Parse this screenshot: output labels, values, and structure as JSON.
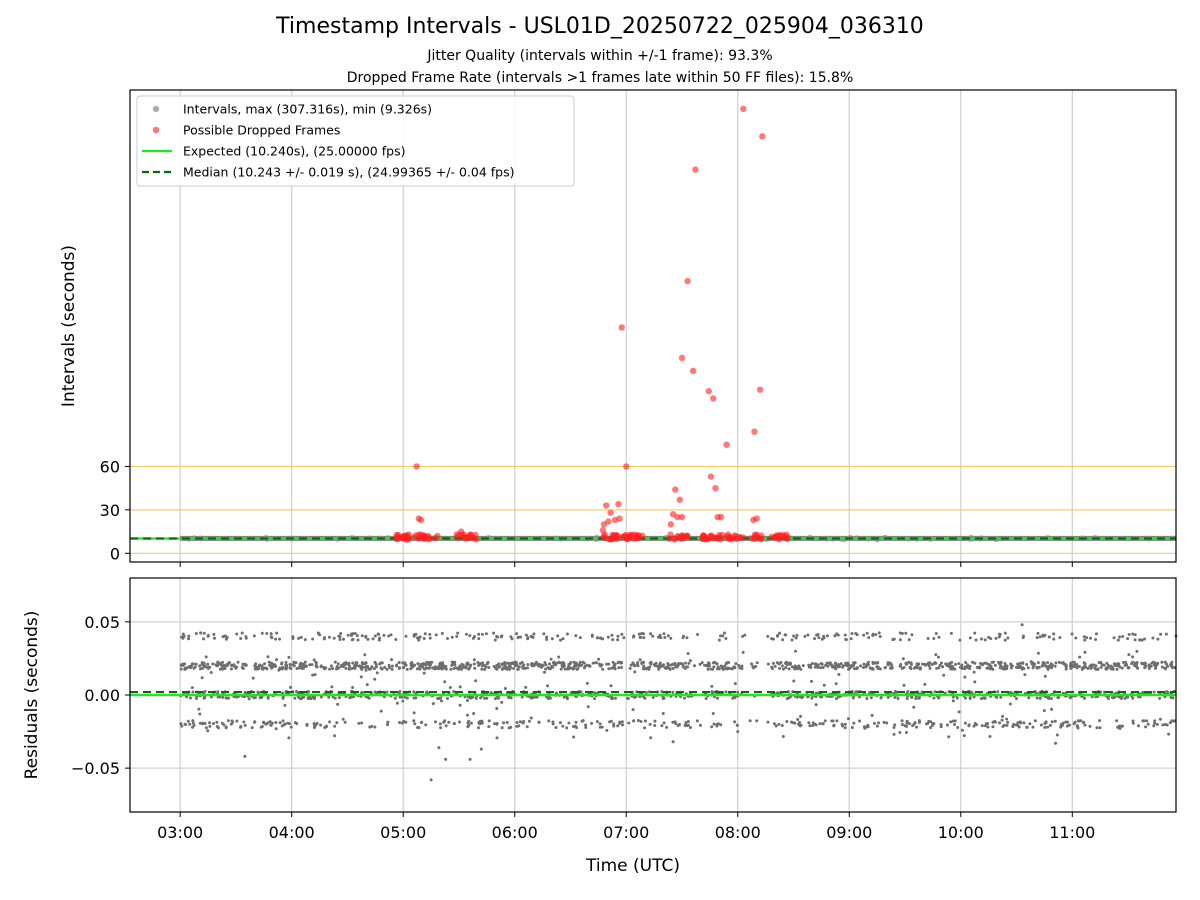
{
  "chart_data": [
    {
      "type": "scatter",
      "panel": "intervals",
      "title": "Timestamp Intervals - USL01D_20250722_025904_036310",
      "subtitles": [
        "Jitter Quality (intervals within +/-1 frame): 93.3%",
        "Dropped Frame Rate (intervals >1 frames late within 50 FF files): 15.8%"
      ],
      "ylabel": "Intervals (seconds)",
      "xlim_hours": [
        2.55,
        11.93
      ],
      "ylim": [
        -6,
        320
      ],
      "y_ticks": [
        0,
        30,
        60
      ],
      "y_tick_labels": [
        "0",
        "30",
        "60"
      ],
      "reference_lines": [
        0,
        30,
        60
      ],
      "reference_line_color": "#f5c842",
      "grid": true,
      "legend": {
        "placement": "top-left",
        "entries": [
          {
            "label": "Intervals, max (307.316s), min (9.326s)",
            "marker": "dot",
            "color": "#8c8c8c"
          },
          {
            "label": "Possible Dropped Frames",
            "marker": "dot",
            "color": "#ff3b3b"
          },
          {
            "label": "Expected (10.240s), (25.00000 fps)",
            "marker": "line",
            "color": "#1ee81e"
          },
          {
            "label": "Median (10.243 +/- 0.019 s), (24.99365 +/- 0.04 fps)",
            "marker": "dash",
            "color": "#0b6b0b"
          }
        ]
      },
      "series": [
        {
          "name": "Intervals, max (307.316s), min (9.326s)",
          "band_y": [
            9.6,
            11.0
          ],
          "x_range_hours": [
            3.0,
            11.93
          ]
        },
        {
          "name": "Possible Dropped Frames",
          "points": [
            [
              5.12,
              60
            ],
            [
              5.14,
              24
            ],
            [
              5.16,
              23
            ],
            [
              5.52,
              15
            ],
            [
              5.48,
              13
            ],
            [
              6.82,
              33
            ],
            [
              6.84,
              22
            ],
            [
              6.86,
              28
            ],
            [
              6.9,
              23
            ],
            [
              6.93,
              34
            ],
            [
              6.94,
              24
            ],
            [
              6.8,
              20
            ],
            [
              6.79,
              16
            ],
            [
              6.96,
              156
            ],
            [
              7.0,
              60
            ],
            [
              7.44,
              44
            ],
            [
              7.48,
              37
            ],
            [
              7.42,
              27
            ],
            [
              7.46,
              25
            ],
            [
              7.5,
              25
            ],
            [
              7.4,
              20
            ],
            [
              7.5,
              135
            ],
            [
              7.55,
              188
            ],
            [
              7.6,
              126
            ],
            [
              7.62,
              265
            ],
            [
              7.74,
              112
            ],
            [
              7.78,
              107
            ],
            [
              7.76,
              53
            ],
            [
              7.8,
              45
            ],
            [
              7.82,
              25
            ],
            [
              7.85,
              25
            ],
            [
              7.9,
              75
            ],
            [
              8.05,
              307
            ],
            [
              8.15,
              84
            ],
            [
              8.2,
              113
            ],
            [
              8.22,
              288
            ],
            [
              8.17,
              24
            ],
            [
              8.14,
              23
            ]
          ],
          "clusters": [
            [
              4.9,
              5.32
            ],
            [
              5.47,
              5.66
            ],
            [
              6.79,
              7.18
            ],
            [
              7.38,
              7.55
            ],
            [
              7.68,
              8.05
            ],
            [
              8.12,
              8.22
            ],
            [
              8.28,
              8.45
            ]
          ],
          "cluster_y": [
            9.5,
            13
          ]
        },
        {
          "name": "Expected (10.240s), (25.00000 fps)",
          "y": 10.24
        },
        {
          "name": "Median (10.243 +/- 0.019 s), (24.99365 +/- 0.04 fps)",
          "y": 10.243
        }
      ]
    },
    {
      "type": "scatter",
      "panel": "residuals",
      "xlabel": "Time (UTC)",
      "ylabel": "Residuals (seconds)",
      "xlim_hours": [
        2.55,
        11.93
      ],
      "ylim": [
        -0.08,
        0.08
      ],
      "y_ticks": [
        -0.05,
        0,
        0.05
      ],
      "y_tick_labels": [
        "−0.05",
        "0.00",
        "0.05"
      ],
      "x_ticks_hours": [
        3,
        4,
        5,
        6,
        7,
        8,
        9,
        10,
        11
      ],
      "x_tick_labels": [
        "03:00",
        "04:00",
        "05:00",
        "06:00",
        "07:00",
        "08:00",
        "09:00",
        "10:00",
        "11:00"
      ],
      "grid": true,
      "expected_y": 0,
      "median_y": 0.002,
      "point_levels": [
        0.02,
        0.0,
        -0.02,
        0.04
      ],
      "point_x_range_hours": [
        3.0,
        11.93
      ],
      "point_gaps_hours": [
        [
          6.97,
          7.05
        ],
        [
          7.58,
          7.7
        ],
        [
          8.05,
          8.3
        ]
      ],
      "outliers": [
        [
          3.58,
          -0.042
        ],
        [
          5.25,
          -0.058
        ],
        [
          5.32,
          -0.036
        ],
        [
          5.38,
          -0.044
        ],
        [
          5.6,
          -0.044
        ],
        [
          5.7,
          -0.037
        ],
        [
          7.42,
          -0.032
        ],
        [
          8.0,
          -0.025
        ],
        [
          10.85,
          -0.033
        ],
        [
          10.55,
          0.048
        ]
      ]
    }
  ]
}
